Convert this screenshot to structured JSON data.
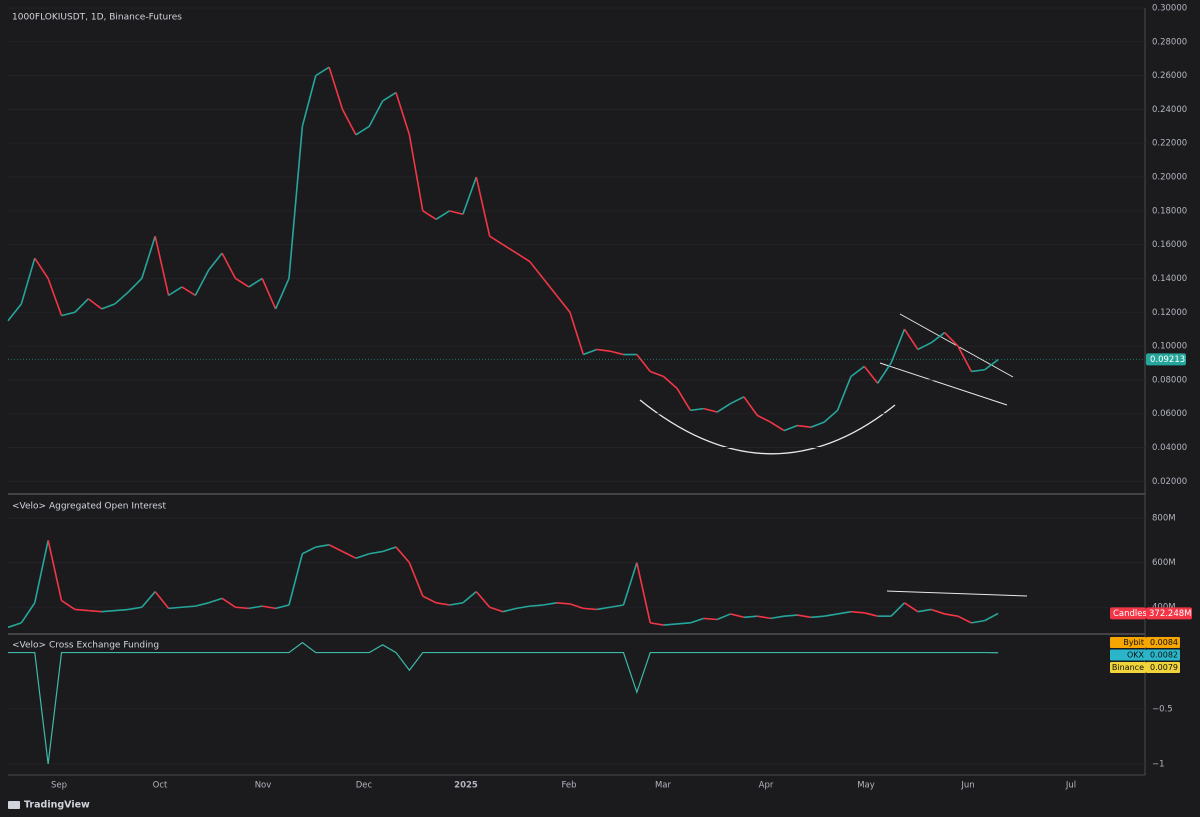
{
  "chart_data": [
    {
      "type": "line",
      "title": "1000FLOKIUSDT, 1D, Binance-Futures",
      "values": [
        0.115,
        0.125,
        0.152,
        0.14,
        0.118,
        0.12,
        0.128,
        0.122,
        0.125,
        0.132,
        0.14,
        0.165,
        0.13,
        0.135,
        0.13,
        0.145,
        0.155,
        0.14,
        0.135,
        0.14,
        0.122,
        0.14,
        0.23,
        0.26,
        0.265,
        0.24,
        0.225,
        0.23,
        0.245,
        0.25,
        0.225,
        0.18,
        0.175,
        0.18,
        0.178,
        0.2,
        0.165,
        0.16,
        0.155,
        0.15,
        0.14,
        0.13,
        0.12,
        0.095,
        0.098,
        0.097,
        0.095,
        0.095,
        0.085,
        0.082,
        0.075,
        0.062,
        0.063,
        0.061,
        0.066,
        0.07,
        0.059,
        0.055,
        0.05,
        0.053,
        0.052,
        0.055,
        0.062,
        0.082,
        0.088,
        0.078,
        0.09,
        0.11,
        0.098,
        0.102,
        0.108,
        0.1,
        0.085,
        0.086,
        0.092
      ],
      "last_price": {
        "value": 0.09213,
        "label": "0.09213"
      },
      "ylim": [
        0.0125,
        0.3
      ],
      "yticks": [
        {
          "value": 0.02,
          "label": "0.02000"
        },
        {
          "value": 0.04,
          "label": "0.04000"
        },
        {
          "value": 0.06,
          "label": "0.06000"
        },
        {
          "value": 0.08,
          "label": "0.08000"
        },
        {
          "value": 0.1,
          "label": "0.10000"
        },
        {
          "value": 0.12,
          "label": "0.12000"
        },
        {
          "value": 0.14,
          "label": "0.14000"
        },
        {
          "value": 0.16,
          "label": "0.16000"
        },
        {
          "value": 0.18,
          "label": "0.18000"
        },
        {
          "value": 0.2,
          "label": "0.20000"
        },
        {
          "value": 0.22,
          "label": "0.22000"
        },
        {
          "value": 0.24,
          "label": "0.24000"
        },
        {
          "value": 0.26,
          "label": "0.26000"
        },
        {
          "value": 0.28,
          "label": "0.28000"
        },
        {
          "value": 0.3,
          "label": "0.30000"
        }
      ],
      "up_color": "#26a69a",
      "down_color": "#f23645",
      "xticks": [
        "Sep",
        "Oct",
        "Nov",
        "Dec",
        "2025",
        "Feb",
        "Mar",
        "Apr",
        "May",
        "Jun",
        "Jul"
      ]
    },
    {
      "type": "line",
      "title": "<Velo> Aggregated Open Interest",
      "values": [
        310000000.0,
        330000000.0,
        420000000.0,
        700000000.0,
        430000000.0,
        390000000.0,
        385000000.0,
        380000000.0,
        385000000.0,
        390000000.0,
        400000000.0,
        470000000.0,
        395000000.0,
        400000000.0,
        405000000.0,
        420000000.0,
        440000000.0,
        400000000.0,
        395000000.0,
        405000000.0,
        395000000.0,
        410000000.0,
        640000000.0,
        670000000.0,
        680000000.0,
        650000000.0,
        620000000.0,
        640000000.0,
        650000000.0,
        670000000.0,
        600000000.0,
        450000000.0,
        420000000.0,
        410000000.0,
        420000000.0,
        470000000.0,
        400000000.0,
        380000000.0,
        395000000.0,
        405000000.0,
        410000000.0,
        420000000.0,
        415000000.0,
        395000000.0,
        390000000.0,
        400000000.0,
        410000000.0,
        600000000.0,
        330000000.0,
        320000000.0,
        325000000.0,
        330000000.0,
        350000000.0,
        345000000.0,
        370000000.0,
        355000000.0,
        360000000.0,
        350000000.0,
        360000000.0,
        365000000.0,
        355000000.0,
        360000000.0,
        370000000.0,
        380000000.0,
        375000000.0,
        360000000.0,
        360000000.0,
        420000000.0,
        380000000.0,
        390000000.0,
        370000000.0,
        360000000.0,
        330000000.0,
        340000000.0,
        372248000.0
      ],
      "last_name": "Candles",
      "last_value": {
        "value": 372248000,
        "label": "372.248M"
      },
      "ylim": [
        280000000.0,
        890000000.0
      ],
      "yticks": [
        {
          "value": 400000000,
          "label": "400M"
        },
        {
          "value": 600000000,
          "label": "600M"
        },
        {
          "value": 800000000,
          "label": "800M"
        }
      ]
    },
    {
      "type": "line",
      "title": "<Velo> Cross Exchange Funding",
      "series": [
        {
          "name": "Binance",
          "color": "#f0d43a",
          "values": [
            0.01,
            0.01,
            0.01,
            -1.0,
            0.01,
            0.01,
            0.01,
            0.01,
            0.01,
            0.01,
            0.01,
            0.01,
            0.01,
            0.01,
            0.01,
            0.01,
            0.01,
            0.01,
            0.01,
            0.01,
            0.01,
            0.01,
            0.1,
            0.01,
            0.01,
            0.01,
            0.01,
            0.01,
            0.08,
            0.01,
            -0.15,
            0.01,
            0.01,
            0.01,
            0.01,
            0.01,
            0.01,
            0.01,
            0.01,
            0.01,
            0.01,
            0.01,
            0.01,
            0.01,
            0.01,
            0.01,
            0.01,
            -0.35,
            0.01,
            0.01,
            0.01,
            0.01,
            0.01,
            0.01,
            0.01,
            0.01,
            0.01,
            0.01,
            0.01,
            0.01,
            0.01,
            0.01,
            0.01,
            0.01,
            0.01,
            0.01,
            0.01,
            0.01,
            0.01,
            0.01,
            0.01,
            0.01,
            0.01,
            0.01,
            0.0079
          ]
        }
      ],
      "latest": [
        {
          "name": "Bybit",
          "color": "#f7a600",
          "label": "0.0084"
        },
        {
          "name": "OKX",
          "color": "#2bb5c8",
          "label": "0.0082"
        },
        {
          "name": "Binance",
          "color": "#f0d43a",
          "label": "0.0079"
        }
      ],
      "ylim": [
        -1.1,
        0.16
      ],
      "yticks": [
        {
          "value": -0.5,
          "label": "−0.5"
        },
        {
          "value": -1,
          "label": "−1"
        }
      ]
    },
    {
      "type": "footer",
      "brand": "TradingView"
    }
  ]
}
